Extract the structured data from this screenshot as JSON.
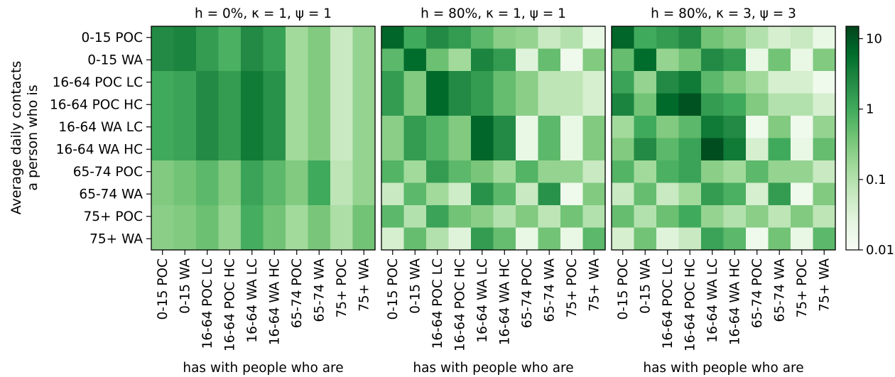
{
  "chart_data": {
    "type": "heatmap",
    "ylabel": "Average daily contacts\na person who is",
    "rows": [
      "0-15 POC",
      "0-15 WA",
      "16-64 POC LC",
      "16-64 POC HC",
      "16-64 WA LC",
      "16-64 WA HC",
      "65-74 POC",
      "65-74 WA",
      "75+ POC",
      "75+ WA"
    ],
    "columns": [
      "0-15 POC",
      "0-15 WA",
      "16-64 POC LC",
      "16-64 POC HC",
      "16-64 WA LC",
      "16-64 WA HC",
      "65-74 POC",
      "65-74 WA",
      "75+ POC",
      "75+ WA"
    ],
    "colorbar": {
      "scale": "log",
      "range": [
        0.01,
        15
      ],
      "ticks": [
        0.01,
        0.1,
        1,
        10
      ],
      "tick_labels": [
        "0.01",
        "0.1",
        "1",
        "10"
      ],
      "colors": [
        "#f7fcf5",
        "#e5f5e0",
        "#c7e9c0",
        "#a1d99b",
        "#74c476",
        "#41ab5d",
        "#238b45",
        "#006d2c",
        "#00441b"
      ]
    },
    "panels": [
      {
        "title": "h = 0%, κ = 1, ψ = 1",
        "xlabel": "has with people who are",
        "values": [
          [
            2.5,
            3.0,
            1.5,
            0.8,
            2.5,
            1.3,
            0.15,
            0.3,
            0.06,
            0.2
          ],
          [
            2.5,
            3.0,
            1.5,
            0.8,
            2.5,
            1.3,
            0.15,
            0.3,
            0.06,
            0.2
          ],
          [
            1.0,
            1.2,
            2.5,
            1.5,
            4.0,
            2.0,
            0.15,
            0.3,
            0.06,
            0.2
          ],
          [
            1.0,
            1.2,
            2.5,
            1.5,
            4.0,
            2.0,
            0.15,
            0.3,
            0.06,
            0.2
          ],
          [
            1.0,
            1.2,
            2.5,
            1.5,
            4.0,
            2.0,
            0.15,
            0.3,
            0.06,
            0.2
          ],
          [
            1.0,
            1.2,
            2.5,
            1.5,
            4.0,
            2.0,
            0.15,
            0.3,
            0.06,
            0.2
          ],
          [
            0.3,
            0.4,
            0.6,
            0.3,
            1.2,
            0.6,
            0.3,
            1.0,
            0.08,
            0.2
          ],
          [
            0.3,
            0.4,
            0.6,
            0.3,
            1.2,
            0.6,
            0.3,
            1.0,
            0.08,
            0.2
          ],
          [
            0.25,
            0.3,
            0.45,
            0.2,
            0.9,
            0.4,
            0.15,
            0.35,
            0.12,
            0.4
          ],
          [
            0.25,
            0.3,
            0.45,
            0.2,
            0.9,
            0.4,
            0.15,
            0.35,
            0.12,
            0.4
          ]
        ]
      },
      {
        "title": "h = 80%, κ = 1, ψ = 1",
        "xlabel": "has with people who are",
        "values": [
          [
            7.0,
            1.0,
            2.5,
            1.5,
            0.6,
            0.25,
            0.2,
            0.06,
            0.1,
            0.02
          ],
          [
            0.6,
            6.0,
            0.45,
            0.15,
            3.0,
            1.5,
            0.03,
            0.5,
            0.015,
            0.3
          ],
          [
            1.5,
            0.3,
            6.5,
            2.5,
            1.5,
            0.5,
            0.25,
            0.08,
            0.08,
            0.04
          ],
          [
            1.5,
            0.3,
            6.5,
            2.5,
            1.5,
            0.5,
            0.25,
            0.08,
            0.08,
            0.04
          ],
          [
            0.25,
            1.5,
            0.7,
            0.3,
            7.0,
            2.5,
            0.02,
            0.6,
            0.02,
            0.3
          ],
          [
            0.25,
            1.5,
            0.7,
            0.3,
            7.0,
            2.5,
            0.02,
            0.6,
            0.02,
            0.3
          ],
          [
            0.7,
            0.15,
            1.5,
            0.6,
            0.35,
            0.15,
            0.7,
            0.2,
            0.2,
            0.06
          ],
          [
            0.06,
            0.6,
            0.15,
            0.05,
            2.0,
            0.6,
            0.06,
            2.0,
            0.015,
            0.3
          ],
          [
            0.6,
            0.1,
            1.2,
            0.4,
            0.25,
            0.1,
            0.3,
            0.08,
            0.4,
            0.1
          ],
          [
            0.04,
            0.5,
            0.1,
            0.03,
            1.5,
            0.5,
            0.02,
            0.4,
            0.02,
            0.6
          ]
        ]
      },
      {
        "title": "h = 80%, κ = 3, ψ = 3",
        "xlabel": "has with people who are",
        "values": [
          [
            7.0,
            1.0,
            1.5,
            2.5,
            0.4,
            0.25,
            0.1,
            0.04,
            0.06,
            0.02
          ],
          [
            0.5,
            6.0,
            0.2,
            0.4,
            2.5,
            1.5,
            0.02,
            0.4,
            0.02,
            0.3
          ],
          [
            1.2,
            0.2,
            2.5,
            4.0,
            0.6,
            0.3,
            0.15,
            0.04,
            0.04,
            0.015
          ],
          [
            3.0,
            0.4,
            6.5,
            11.0,
            1.5,
            1.0,
            0.3,
            0.1,
            0.1,
            0.04
          ],
          [
            0.15,
            1.0,
            0.3,
            0.6,
            4.0,
            2.5,
            0.015,
            0.3,
            0.015,
            0.2
          ],
          [
            0.3,
            2.5,
            0.6,
            1.2,
            12.0,
            4.0,
            0.04,
            1.0,
            0.02,
            0.5
          ],
          [
            0.7,
            0.15,
            0.8,
            1.2,
            0.25,
            0.15,
            0.6,
            0.2,
            0.2,
            0.06
          ],
          [
            0.06,
            0.5,
            0.06,
            0.15,
            1.5,
            0.8,
            0.04,
            1.5,
            0.015,
            0.3
          ],
          [
            0.5,
            0.1,
            0.45,
            1.0,
            0.2,
            0.1,
            0.25,
            0.08,
            0.3,
            0.08
          ],
          [
            0.04,
            0.4,
            0.03,
            0.06,
            1.2,
            0.6,
            0.015,
            0.4,
            0.02,
            0.6
          ]
        ]
      }
    ]
  }
}
